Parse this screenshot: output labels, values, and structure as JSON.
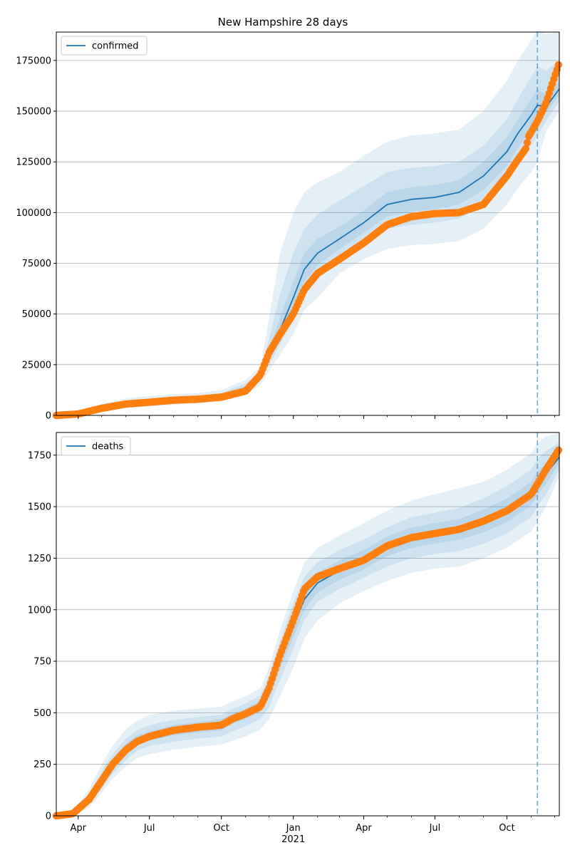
{
  "title": "New Hampshire 28 days",
  "colors": {
    "model": "#1f77b4",
    "observed": "#ff7f0e",
    "band": "#1f77b4",
    "grid": "#b0b0b0",
    "axis": "#000000"
  },
  "x_ticks": [
    {
      "label": "Apr",
      "sub": ""
    },
    {
      "label": "Jul",
      "sub": ""
    },
    {
      "label": "Oct",
      "sub": ""
    },
    {
      "label": "Jan",
      "sub": "2021"
    },
    {
      "label": "Apr",
      "sub": ""
    },
    {
      "label": "Jul",
      "sub": ""
    },
    {
      "label": "Oct",
      "sub": ""
    }
  ],
  "chart_data": [
    {
      "type": "line",
      "panel": "top",
      "legend": "confirmed",
      "legend_location": "upper-left",
      "grid": "horizontal",
      "xlim": [
        "2020-03-04",
        "2021-12-07"
      ],
      "ylim": [
        0,
        189000
      ],
      "yticks": [
        0,
        25000,
        50000,
        75000,
        100000,
        125000,
        150000,
        175000
      ],
      "ytick_labels": [
        "0",
        "25000",
        "50000",
        "75000",
        "100000",
        "125000",
        "150000",
        "175000"
      ],
      "forecast_start": "2021-11-09",
      "x": [
        "2020-03-04",
        "2020-04-01",
        "2020-05-01",
        "2020-06-01",
        "2020-07-01",
        "2020-08-01",
        "2020-09-01",
        "2020-10-01",
        "2020-11-01",
        "2020-11-20",
        "2020-12-01",
        "2020-12-15",
        "2021-01-01",
        "2021-01-15",
        "2021-02-01",
        "2021-03-01",
        "2021-04-01",
        "2021-05-01",
        "2021-06-01",
        "2021-07-01",
        "2021-08-01",
        "2021-09-01",
        "2021-10-01",
        "2021-10-15",
        "2021-11-01",
        "2021-11-09",
        "2021-11-20",
        "2021-12-07"
      ],
      "series": [
        {
          "name": "confirmed",
          "values": [
            0,
            800,
            3500,
            5600,
            6500,
            7500,
            8200,
            9500,
            13500,
            18500,
            30000,
            42000,
            58000,
            72000,
            80000,
            87000,
            95000,
            104000,
            106500,
            107500,
            110000,
            118000,
            130000,
            139000,
            148000,
            153000,
            152000,
            161000
          ]
        }
      ],
      "observed_x": [
        "2020-03-04",
        "2020-04-01",
        "2020-05-01",
        "2020-06-01",
        "2020-07-01",
        "2020-08-01",
        "2020-09-01",
        "2020-10-01",
        "2020-11-01",
        "2020-11-20",
        "2020-12-01",
        "2020-12-15",
        "2021-01-01",
        "2021-01-15",
        "2021-02-01",
        "2021-03-01",
        "2021-04-01",
        "2021-05-01",
        "2021-06-01",
        "2021-07-01",
        "2021-08-01",
        "2021-09-01",
        "2021-10-01",
        "2021-10-15",
        "2021-10-26",
        "2021-10-28",
        "2021-11-09",
        "2021-11-20",
        "2021-11-25",
        "2021-12-01",
        "2021-12-07"
      ],
      "observed": [
        0,
        700,
        3500,
        5600,
        6500,
        7500,
        8000,
        9000,
        12000,
        20000,
        31000,
        40000,
        50000,
        62000,
        70000,
        77000,
        85000,
        94000,
        98000,
        99500,
        100000,
        104000,
        118000,
        126000,
        132000,
        137000,
        145000,
        154000,
        160000,
        167000,
        174000
      ],
      "bands": [
        {
          "level": "outer",
          "lower": [
            0,
            500,
            2200,
            3600,
            4500,
            5200,
            6000,
            7000,
            10000,
            15000,
            22000,
            30000,
            40000,
            52000,
            58000,
            70000,
            77000,
            82000,
            84000,
            84500,
            86000,
            92000,
            104000,
            112000,
            120000,
            125000,
            140000,
            150000
          ],
          "upper": [
            0,
            1200,
            5500,
            8500,
            9500,
            10500,
            11000,
            12500,
            17500,
            24000,
            48000,
            80000,
            100000,
            110000,
            115000,
            120000,
            128000,
            135000,
            138000,
            139000,
            141000,
            150000,
            165000,
            175000,
            185000,
            190000,
            188000,
            189000
          ]
        },
        {
          "level": "middle",
          "lower": [
            0,
            600,
            2800,
            4300,
            5200,
            6000,
            6800,
            7900,
            11500,
            17000,
            25000,
            35000,
            47000,
            60000,
            67000,
            77000,
            85000,
            92000,
            94000,
            95000,
            97000,
            103000,
            115000,
            124000,
            133000,
            138000,
            145000,
            155000
          ],
          "upper": [
            0,
            1000,
            4700,
            7200,
            8200,
            9100,
            9800,
            11000,
            15800,
            21000,
            38000,
            60000,
            80000,
            92000,
            99000,
            106000,
            113000,
            120000,
            122000,
            123000,
            125000,
            133000,
            146000,
            156000,
            167000,
            172000,
            170000,
            175000
          ]
        },
        {
          "level": "inner",
          "lower": [
            0,
            700,
            3200,
            5000,
            5900,
            6800,
            7500,
            8700,
            12600,
            18000,
            28000,
            39000,
            53000,
            66000,
            74000,
            82000,
            90000,
            98000,
            100500,
            101500,
            104000,
            111000,
            123000,
            132000,
            141000,
            146000,
            149000,
            158000
          ],
          "upper": [
            0,
            900,
            4000,
            6300,
            7300,
            8200,
            8900,
            10200,
            14500,
            19500,
            33000,
            48000,
            66000,
            80000,
            87000,
            93000,
            101000,
            110000,
            112500,
            113500,
            116000,
            125000,
            137000,
            146000,
            156000,
            161000,
            158000,
            165000
          ]
        }
      ]
    },
    {
      "type": "line",
      "panel": "bottom",
      "legend": "deaths",
      "legend_location": "upper-left",
      "grid": "horizontal",
      "xlim": [
        "2020-03-04",
        "2021-12-07"
      ],
      "ylim": [
        0,
        1860
      ],
      "yticks": [
        0,
        250,
        500,
        750,
        1000,
        1250,
        1500,
        1750
      ],
      "ytick_labels": [
        "0",
        "250",
        "500",
        "750",
        "1000",
        "1250",
        "1500",
        "1750"
      ],
      "forecast_start": "2021-11-09",
      "x": [
        "2020-03-04",
        "2020-03-25",
        "2020-04-15",
        "2020-05-01",
        "2020-05-15",
        "2020-06-01",
        "2020-06-15",
        "2020-07-01",
        "2020-08-01",
        "2020-09-01",
        "2020-10-01",
        "2020-10-15",
        "2020-11-01",
        "2020-11-20",
        "2020-12-01",
        "2020-12-15",
        "2021-01-01",
        "2021-01-15",
        "2021-02-01",
        "2021-03-01",
        "2021-04-01",
        "2021-05-01",
        "2021-06-01",
        "2021-07-01",
        "2021-08-01",
        "2021-09-01",
        "2021-10-01",
        "2021-11-01",
        "2021-11-09",
        "2021-11-20",
        "2021-12-07"
      ],
      "series": [
        {
          "name": "deaths",
          "values": [
            0,
            10,
            80,
            170,
            250,
            320,
            360,
            385,
            415,
            430,
            445,
            470,
            495,
            530,
            620,
            770,
            920,
            1050,
            1130,
            1190,
            1240,
            1310,
            1350,
            1370,
            1390,
            1430,
            1480,
            1560,
            1610,
            1660,
            1740
          ]
        }
      ],
      "observed_x": [
        "2020-03-04",
        "2020-03-25",
        "2020-04-15",
        "2020-05-01",
        "2020-05-15",
        "2020-06-01",
        "2020-06-15",
        "2020-07-01",
        "2020-08-01",
        "2020-09-01",
        "2020-10-01",
        "2020-10-15",
        "2020-11-01",
        "2020-11-20",
        "2020-12-01",
        "2020-12-15",
        "2021-01-01",
        "2021-01-15",
        "2021-02-01",
        "2021-03-01",
        "2021-04-01",
        "2021-05-01",
        "2021-06-01",
        "2021-07-01",
        "2021-08-01",
        "2021-09-01",
        "2021-10-01",
        "2021-11-01",
        "2021-11-09",
        "2021-11-20",
        "2021-12-07"
      ],
      "observed": [
        0,
        10,
        80,
        170,
        250,
        320,
        360,
        385,
        415,
        430,
        440,
        470,
        495,
        530,
        620,
        780,
        950,
        1100,
        1160,
        1200,
        1240,
        1310,
        1350,
        1370,
        1390,
        1430,
        1480,
        1560,
        1610,
        1680,
        1780
      ],
      "bands": [
        {
          "level": "outer",
          "lower": [
            0,
            0,
            40,
            110,
            180,
            240,
            280,
            300,
            320,
            335,
            345,
            365,
            385,
            420,
            470,
            580,
            720,
            860,
            950,
            1030,
            1090,
            1140,
            1180,
            1200,
            1210,
            1250,
            1300,
            1380,
            1430,
            1500,
            1650
          ],
          "upper": [
            0,
            20,
            130,
            250,
            340,
            420,
            460,
            490,
            510,
            520,
            530,
            555,
            580,
            620,
            720,
            900,
            1090,
            1230,
            1300,
            1360,
            1420,
            1480,
            1530,
            1560,
            1590,
            1620,
            1680,
            1760,
            1810,
            1840,
            1860
          ]
        },
        {
          "level": "middle",
          "lower": [
            0,
            3,
            55,
            130,
            205,
            270,
            315,
            340,
            360,
            375,
            385,
            410,
            435,
            470,
            530,
            660,
            810,
            950,
            1040,
            1100,
            1155,
            1210,
            1250,
            1270,
            1285,
            1320,
            1370,
            1450,
            1500,
            1560,
            1680
          ],
          "upper": [
            0,
            15,
            110,
            215,
            300,
            375,
            415,
            440,
            465,
            480,
            490,
            520,
            545,
            585,
            680,
            850,
            1030,
            1160,
            1230,
            1290,
            1340,
            1400,
            1450,
            1470,
            1495,
            1540,
            1600,
            1680,
            1730,
            1770,
            1810
          ]
        },
        {
          "level": "inner",
          "lower": [
            0,
            6,
            68,
            150,
            225,
            295,
            340,
            365,
            390,
            405,
            415,
            445,
            470,
            505,
            575,
            715,
            865,
            1000,
            1085,
            1145,
            1195,
            1260,
            1300,
            1320,
            1340,
            1375,
            1425,
            1505,
            1555,
            1610,
            1710
          ],
          "upper": [
            0,
            12,
            95,
            190,
            275,
            350,
            390,
            410,
            440,
            455,
            470,
            495,
            520,
            560,
            650,
            800,
            970,
            1110,
            1180,
            1240,
            1290,
            1355,
            1400,
            1420,
            1440,
            1485,
            1540,
            1620,
            1670,
            1710,
            1770
          ]
        }
      ]
    }
  ]
}
